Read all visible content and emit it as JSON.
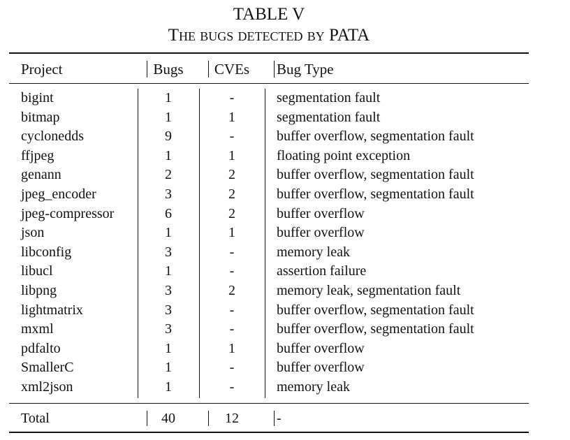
{
  "caption": {
    "label": "TABLE V",
    "title": "The bugs detected by PATA"
  },
  "table": {
    "headers": [
      "Project",
      "Bugs",
      "CVEs",
      "Bug Type"
    ],
    "rows": [
      [
        "bigint",
        "1",
        "-",
        "segmentation fault"
      ],
      [
        "bitmap",
        "1",
        "1",
        "segmentation fault"
      ],
      [
        "cyclonedds",
        "9",
        "-",
        "buffer overflow, segmentation fault"
      ],
      [
        "ffjpeg",
        "1",
        "1",
        "floating point exception"
      ],
      [
        "genann",
        "2",
        "2",
        "buffer overflow, segmentation fault"
      ],
      [
        "jpeg_encoder",
        "3",
        "2",
        "buffer overflow, segmentation fault"
      ],
      [
        "jpeg-compressor",
        "6",
        "2",
        "buffer overflow"
      ],
      [
        "json",
        "1",
        "1",
        "buffer overflow"
      ],
      [
        "libconfig",
        "3",
        "-",
        "memory leak"
      ],
      [
        "libucl",
        "1",
        "-",
        "assertion failure"
      ],
      [
        "libpng",
        "3",
        "2",
        "memory leak, segmentation fault"
      ],
      [
        "lightmatrix",
        "3",
        "-",
        "buffer overflow, segmentation fault"
      ],
      [
        "mxml",
        "3",
        "-",
        "buffer overflow, segmentation fault"
      ],
      [
        "pdfalto",
        "1",
        "1",
        "buffer overflow"
      ],
      [
        "SmallerC",
        "1",
        "-",
        "buffer overflow"
      ],
      [
        "xml2json",
        "1",
        "-",
        "memory leak"
      ]
    ],
    "total": [
      "Total",
      "40",
      "12",
      "-"
    ]
  }
}
